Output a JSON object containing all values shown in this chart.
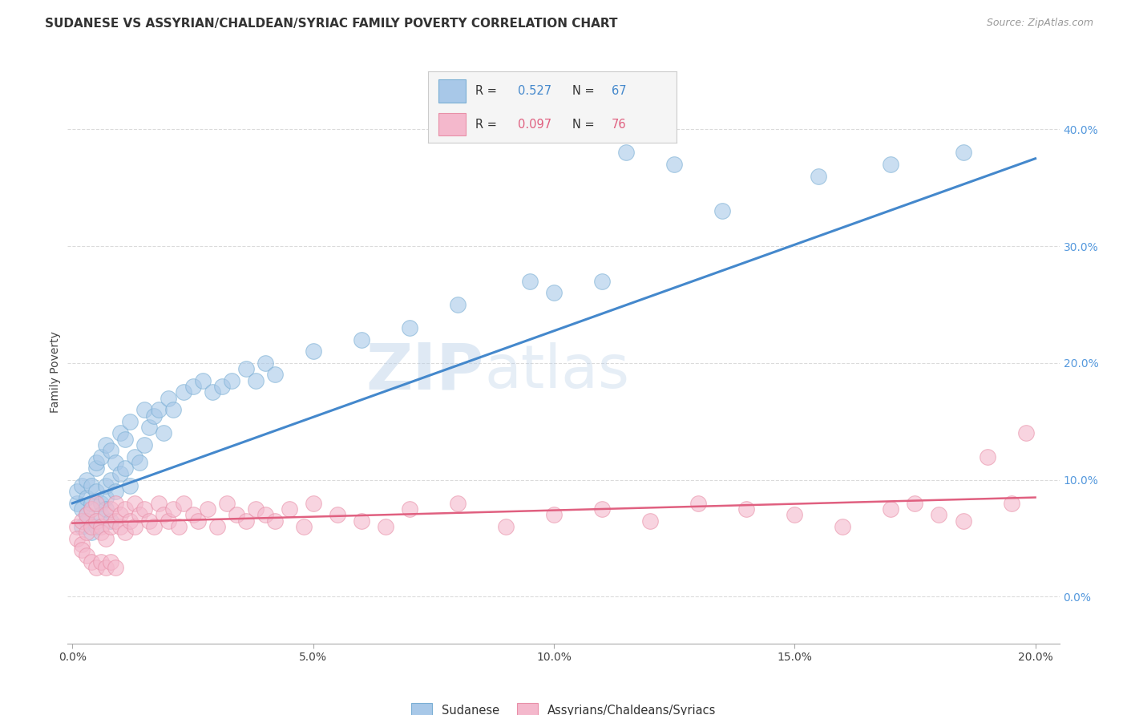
{
  "title": "SUDANESE VS ASSYRIAN/CHALDEAN/SYRIAC FAMILY POVERTY CORRELATION CHART",
  "source": "Source: ZipAtlas.com",
  "xlabel_ticks": [
    "0.0%",
    "5.0%",
    "10.0%",
    "15.0%",
    "20.0%"
  ],
  "xlabel_vals": [
    0.0,
    0.05,
    0.1,
    0.15,
    0.2
  ],
  "ylabel": "Family Poverty",
  "ylabel_ticks_right": [
    "0.0%",
    "10.0%",
    "20.0%",
    "30.0%",
    "40.0%"
  ],
  "ylabel_vals_right": [
    0.0,
    0.1,
    0.2,
    0.3,
    0.4
  ],
  "xmin": -0.001,
  "xmax": 0.205,
  "ymin": -0.04,
  "ymax": 0.425,
  "blue_color": "#a8c8e8",
  "blue_edge_color": "#7aafd4",
  "blue_line_color": "#4488cc",
  "pink_color": "#f4b8cc",
  "pink_edge_color": "#e890a8",
  "pink_line_color": "#e06080",
  "legend_R1": "0.527",
  "legend_N1": "67",
  "legend_R2": "0.097",
  "legend_N2": "76",
  "watermark_zip": "ZIP",
  "watermark_atlas": "atlas",
  "label1": "Sudanese",
  "label2": "Assyrians/Chaldeans/Syriacs",
  "blue_scatter_x": [
    0.001,
    0.001,
    0.002,
    0.002,
    0.003,
    0.003,
    0.003,
    0.004,
    0.004,
    0.005,
    0.005,
    0.005,
    0.006,
    0.006,
    0.007,
    0.007,
    0.007,
    0.008,
    0.008,
    0.009,
    0.009,
    0.01,
    0.01,
    0.011,
    0.011,
    0.012,
    0.012,
    0.013,
    0.014,
    0.015,
    0.015,
    0.016,
    0.017,
    0.018,
    0.019,
    0.02,
    0.021,
    0.023,
    0.025,
    0.027,
    0.029,
    0.031,
    0.033,
    0.036,
    0.038,
    0.04,
    0.042,
    0.05,
    0.06,
    0.07,
    0.08,
    0.095,
    0.1,
    0.11,
    0.115,
    0.125,
    0.135,
    0.155,
    0.17,
    0.185,
    0.002,
    0.003,
    0.004,
    0.005,
    0.006,
    0.007,
    0.008
  ],
  "blue_scatter_y": [
    0.08,
    0.09,
    0.075,
    0.095,
    0.085,
    0.1,
    0.07,
    0.08,
    0.095,
    0.11,
    0.09,
    0.115,
    0.08,
    0.12,
    0.085,
    0.095,
    0.13,
    0.1,
    0.125,
    0.09,
    0.115,
    0.105,
    0.14,
    0.11,
    0.135,
    0.095,
    0.15,
    0.12,
    0.115,
    0.13,
    0.16,
    0.145,
    0.155,
    0.16,
    0.14,
    0.17,
    0.16,
    0.175,
    0.18,
    0.185,
    0.175,
    0.18,
    0.185,
    0.195,
    0.185,
    0.2,
    0.19,
    0.21,
    0.22,
    0.23,
    0.25,
    0.27,
    0.26,
    0.27,
    0.38,
    0.37,
    0.33,
    0.36,
    0.37,
    0.38,
    0.06,
    0.065,
    0.055,
    0.06,
    0.07,
    0.075,
    0.065
  ],
  "pink_scatter_x": [
    0.001,
    0.001,
    0.002,
    0.002,
    0.003,
    0.003,
    0.004,
    0.004,
    0.005,
    0.005,
    0.006,
    0.006,
    0.007,
    0.007,
    0.008,
    0.008,
    0.009,
    0.009,
    0.01,
    0.01,
    0.011,
    0.011,
    0.012,
    0.013,
    0.013,
    0.014,
    0.015,
    0.016,
    0.017,
    0.018,
    0.019,
    0.02,
    0.021,
    0.022,
    0.023,
    0.025,
    0.026,
    0.028,
    0.03,
    0.032,
    0.034,
    0.036,
    0.038,
    0.04,
    0.042,
    0.045,
    0.048,
    0.05,
    0.055,
    0.06,
    0.065,
    0.07,
    0.08,
    0.09,
    0.1,
    0.11,
    0.12,
    0.13,
    0.14,
    0.15,
    0.16,
    0.17,
    0.175,
    0.18,
    0.185,
    0.19,
    0.195,
    0.198,
    0.002,
    0.003,
    0.004,
    0.005,
    0.006,
    0.007,
    0.008,
    0.009
  ],
  "pink_scatter_y": [
    0.06,
    0.05,
    0.065,
    0.045,
    0.055,
    0.07,
    0.06,
    0.075,
    0.065,
    0.08,
    0.06,
    0.055,
    0.07,
    0.05,
    0.06,
    0.075,
    0.065,
    0.08,
    0.06,
    0.07,
    0.055,
    0.075,
    0.065,
    0.06,
    0.08,
    0.07,
    0.075,
    0.065,
    0.06,
    0.08,
    0.07,
    0.065,
    0.075,
    0.06,
    0.08,
    0.07,
    0.065,
    0.075,
    0.06,
    0.08,
    0.07,
    0.065,
    0.075,
    0.07,
    0.065,
    0.075,
    0.06,
    0.08,
    0.07,
    0.065,
    0.06,
    0.075,
    0.08,
    0.06,
    0.07,
    0.075,
    0.065,
    0.08,
    0.075,
    0.07,
    0.06,
    0.075,
    0.08,
    0.07,
    0.065,
    0.12,
    0.08,
    0.14,
    0.04,
    0.035,
    0.03,
    0.025,
    0.03,
    0.025,
    0.03,
    0.025
  ],
  "blue_line_x": [
    0.0,
    0.2
  ],
  "blue_line_y": [
    0.08,
    0.375
  ],
  "pink_line_x": [
    0.0,
    0.2
  ],
  "pink_line_y": [
    0.063,
    0.085
  ],
  "background_color": "#ffffff",
  "grid_color": "#cccccc",
  "title_fontsize": 11,
  "source_fontsize": 9
}
